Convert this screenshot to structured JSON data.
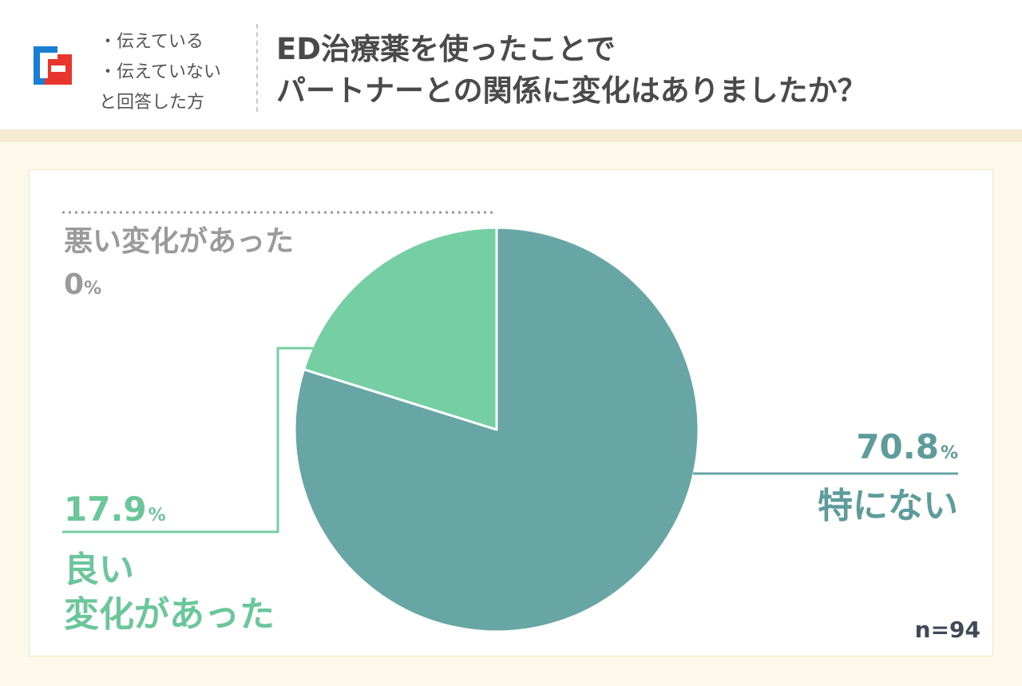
{
  "header": {
    "filter_lines": [
      "・伝えている",
      "・伝えていない",
      "と回答した方"
    ],
    "title_lines": [
      "ED治療薬を使ったことで",
      "パートナーとの関係に変化はありましたか？"
    ]
  },
  "colors": {
    "none": "#68a6a6",
    "good": "#76cfa4",
    "bad": "#9a9a9a",
    "background": "#fcf8ea"
  },
  "chart_data": {
    "type": "pie",
    "n_label": "n=94",
    "unit": "%",
    "slices": [
      {
        "label": "特にない",
        "value": 70.8,
        "value_text": "70.8",
        "color": "#68a6a6"
      },
      {
        "label": "良い変化があった",
        "label_lines": [
          "良い",
          "変化があった"
        ],
        "value": 17.9,
        "value_text": "17.9",
        "color": "#76cfa4"
      },
      {
        "label": "悪い変化があった",
        "value": 0,
        "value_text": "0",
        "color": "#9a9a9a"
      }
    ]
  }
}
